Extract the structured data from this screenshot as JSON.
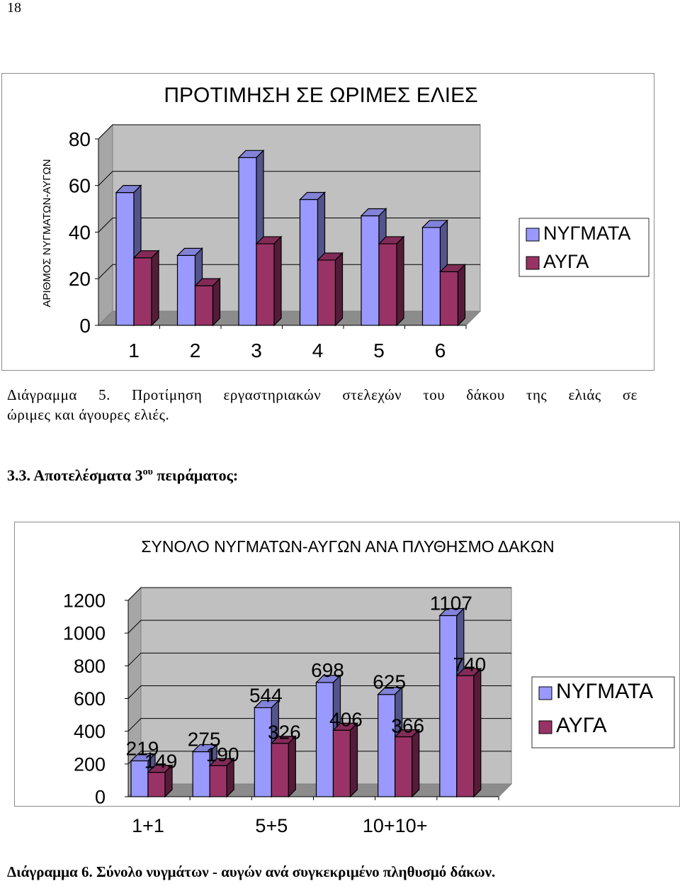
{
  "page_number": "18",
  "chart_data": [
    {
      "type": "bar",
      "title": "ΠΡΟΤΙΜΗΣΗ ΣΕ ΩΡΙΜΕΣ ΕΛΙΕΣ",
      "ylabel": "ΑΡΙΘΜΟΣ ΝΥΓΜΑΤΩΝ-ΑΥΓΩΝ",
      "xlabel": "",
      "categories": [
        "1",
        "2",
        "3",
        "4",
        "5",
        "6"
      ],
      "series": [
        {
          "name": "ΝΥΓΜΑΤΑ",
          "values": [
            57,
            30,
            72,
            54,
            47,
            42
          ]
        },
        {
          "name": "ΑΥΓΑ",
          "values": [
            29,
            17,
            35,
            28,
            35,
            23
          ]
        }
      ],
      "ylim": [
        0,
        80
      ],
      "yticks": [
        "0",
        "20",
        "40",
        "60",
        "80"
      ],
      "legend": "right",
      "three_d": true,
      "colors": {
        "series1": "#9999ff",
        "series2": "#993366",
        "wall": "#c0c0c0"
      }
    },
    {
      "type": "bar",
      "title": "ΣΥΝΟΛΟ ΝΥΓΜΑΤΩΝ-ΑΥΓΩΝ ΑΝΑ ΠΛΥΘΗΣΜΟ ΔΑΚΩΝ",
      "xlabel": "",
      "ylabel": "",
      "categories": [
        "1+1",
        "",
        "5+5",
        "",
        "10+10+",
        ""
      ],
      "series": [
        {
          "name": "ΝΥΓΜΑΤΑ",
          "values": [
            219,
            275,
            544,
            698,
            625,
            1107
          ]
        },
        {
          "name": "ΑΥΓΑ",
          "values": [
            149,
            190,
            326,
            406,
            366,
            740
          ]
        }
      ],
      "ylim": [
        0,
        1200
      ],
      "yticks": [
        "0",
        "200",
        "400",
        "600",
        "800",
        "1000",
        "1200"
      ],
      "data_labels": true,
      "legend": "right",
      "three_d": true,
      "colors": {
        "series1": "#9999ff",
        "series2": "#993366",
        "wall": "#c0c0c0"
      }
    }
  ],
  "caption1": {
    "line1": "Διάγραμμα 5. Προτίμηση εργαστηριακών στελεχών του δάκου της ελιάς σε",
    "line2": "ώριμες και άγουρες ελιές."
  },
  "section_heading": {
    "text": "3.3. Αποτελέσματα 3",
    "sup": "ου",
    "tail": " πειράματος:"
  },
  "caption2": "Διάγραμμα 6. Σύνολο νυγμάτων - αυγών ανά συγκεκριμένο πληθυσμό δάκων."
}
